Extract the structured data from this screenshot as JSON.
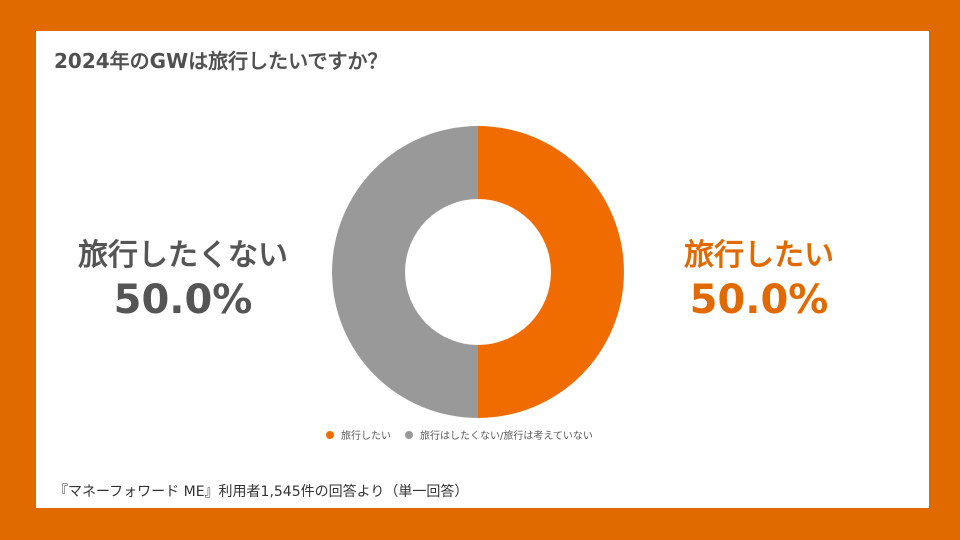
{
  "chart_data": {
    "type": "pie",
    "title": "2024年のGWは旅行したいですか？",
    "categories": [
      "旅行したい",
      "旅行はしたくない/旅行は考えていない"
    ],
    "values": [
      50.0,
      50.0
    ],
    "colors": [
      "#F06C00",
      "#999999"
    ],
    "legend": "bottom",
    "callouts": {
      "right": {
        "name": "旅行したい",
        "pct": "50.0%"
      },
      "left": {
        "name": "旅行したくない",
        "pct": "50.0%"
      }
    }
  },
  "footnote": "『マネーフォワード ME』利用者1,545件の回答より（単一回答）"
}
